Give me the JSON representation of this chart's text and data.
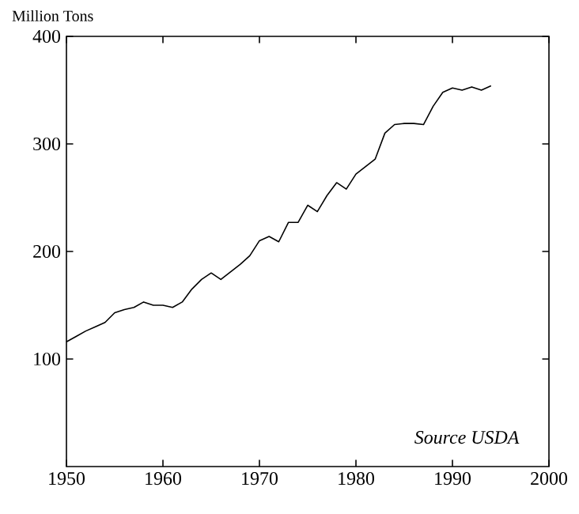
{
  "chart_data": {
    "type": "line",
    "ylabel": "Million Tons",
    "x": [
      1950,
      1951,
      1952,
      1953,
      1954,
      1955,
      1956,
      1957,
      1958,
      1959,
      1960,
      1961,
      1962,
      1963,
      1964,
      1965,
      1966,
      1967,
      1968,
      1969,
      1970,
      1971,
      1972,
      1973,
      1974,
      1975,
      1976,
      1977,
      1978,
      1979,
      1980,
      1981,
      1982,
      1983,
      1984,
      1985,
      1986,
      1987,
      1988,
      1989,
      1990,
      1991,
      1992,
      1993,
      1994
    ],
    "values": [
      116,
      121,
      126,
      130,
      134,
      143,
      146,
      148,
      153,
      150,
      150,
      148,
      153,
      165,
      174,
      180,
      174,
      181,
      188,
      196,
      210,
      214,
      209,
      227,
      227,
      243,
      237,
      252,
      264,
      258,
      272,
      279,
      286,
      310,
      318,
      319,
      319,
      318,
      335,
      348,
      352,
      350,
      353,
      350,
      354
    ],
    "color": "#000000",
    "xlim": [
      1950,
      2000
    ],
    "xticks": [
      1950,
      1960,
      1970,
      1980,
      1990,
      2000
    ],
    "ylim": [
      0,
      400
    ],
    "yticks": [
      100,
      200,
      300,
      400
    ],
    "annotations": [
      "*Source USDA*"
    ],
    "grid": false,
    "marker": "none",
    "line_style": "solid"
  }
}
